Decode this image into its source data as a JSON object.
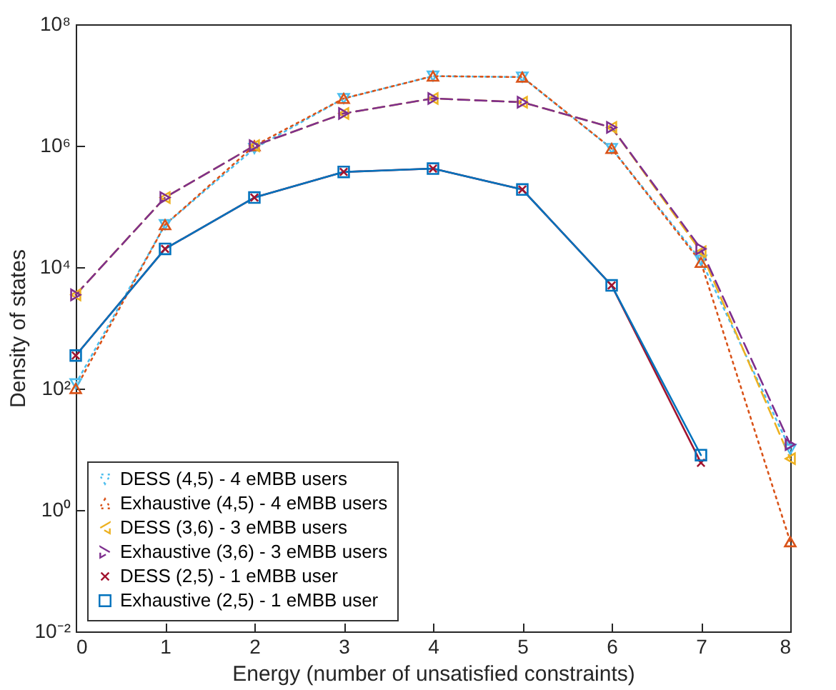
{
  "chart_data": {
    "type": "line",
    "xlabel": "Energy (number of unsatisfied constraints)",
    "ylabel": "Density of states",
    "x": [
      0,
      1,
      2,
      3,
      4,
      5,
      6,
      7,
      8
    ],
    "log": "y",
    "xlim": [
      0,
      8
    ],
    "xticks": [
      0,
      1,
      2,
      3,
      4,
      5,
      6,
      7,
      8
    ],
    "ylim": [
      0.01,
      100000000
    ],
    "yticks": [
      {
        "value": 0.01,
        "label": "10⁻²"
      },
      {
        "value": 1,
        "label": "10⁰"
      },
      {
        "value": 100,
        "label": "10²"
      },
      {
        "value": 10000,
        "label": "10⁴"
      },
      {
        "value": 1000000,
        "label": "10⁶"
      },
      {
        "value": 100000000,
        "label": "10⁸"
      }
    ],
    "grid": false,
    "legend": "bottom left",
    "series": [
      {
        "name": "DESS (4,5) - 4 eMBB users",
        "color": "#4dbeee",
        "marker": "triangle-down",
        "line_style": "dotted",
        "values": [
          120,
          50000,
          900000,
          6000000,
          14000000,
          13500000,
          900000,
          13000,
          10
        ]
      },
      {
        "name": "Exhaustive (4,5) - 4 eMBB users",
        "color": "#d95319",
        "marker": "triangle-up",
        "line_style": "dotted",
        "values": [
          100,
          50000,
          1000000,
          6000000,
          14000000,
          13500000,
          900000,
          12000,
          0.3
        ]
      },
      {
        "name": "DESS (3,6) - 3 eMBB users",
        "color": "#edb120",
        "marker": "triangle-left",
        "line_style": "dashed",
        "values": [
          3500,
          140000,
          1000000,
          3400000,
          6000000,
          5200000,
          2000000,
          18000,
          7
        ]
      },
      {
        "name": "Exhaustive (3,6) - 3 eMBB users",
        "color": "#7e2f8e",
        "marker": "triangle-right",
        "line_style": "dashed",
        "values": [
          3500,
          140000,
          1000000,
          3400000,
          6000000,
          5200000,
          2000000,
          20000,
          12
        ]
      },
      {
        "name": "DESS (2,5) - 1 eMBB user",
        "color": "#a2142f",
        "marker": "cross",
        "line_style": "solid",
        "values": [
          350,
          20000,
          140000,
          370000,
          420000,
          190000,
          5000,
          6,
          null
        ]
      },
      {
        "name": "Exhaustive (2,5) - 1 eMBB user",
        "color": "#0072bd",
        "marker": "square",
        "line_style": "solid",
        "values": [
          350,
          20000,
          140000,
          370000,
          420000,
          190000,
          5000,
          8,
          null
        ]
      }
    ]
  }
}
